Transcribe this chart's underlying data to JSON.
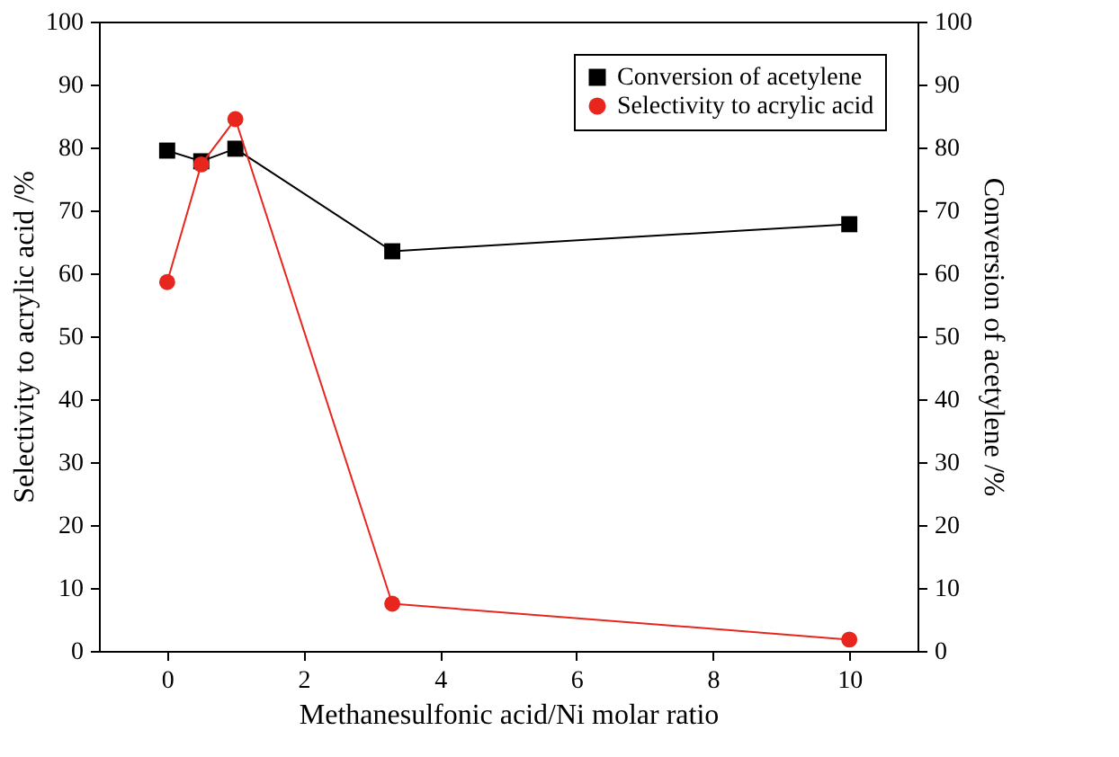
{
  "chart_data": {
    "type": "line",
    "xlabel": "Methanesulfonic acid/Ni molar ratio",
    "ylabel": "Selectivity to acrylic acid /%",
    "y2label": "Conversion of acetylene /%",
    "x": [
      0,
      0.5,
      1,
      3.3,
      10
    ],
    "series": [
      {
        "name": "Conversion of acetylene",
        "color": "#000000",
        "marker": "square",
        "axis": "y2",
        "values": [
          79.5,
          77.8,
          79.8,
          63.5,
          67.8
        ]
      },
      {
        "name": "Selectivity to acrylic acid",
        "color": "#e8261e",
        "marker": "circle",
        "values": [
          58.6,
          77.3,
          84.5,
          7.5,
          1.8
        ]
      }
    ],
    "xlim": [
      -1,
      11
    ],
    "xticks": [
      0,
      2,
      4,
      6,
      8,
      10
    ],
    "ylim": [
      0,
      100
    ],
    "yticks": [
      0,
      10,
      20,
      30,
      40,
      50,
      60,
      70,
      80,
      90,
      100
    ],
    "y2lim": [
      0,
      100
    ],
    "y2ticks": [
      0,
      10,
      20,
      30,
      40,
      50,
      60,
      70,
      80,
      90,
      100
    ],
    "legend": "top right",
    "grid": false
  }
}
